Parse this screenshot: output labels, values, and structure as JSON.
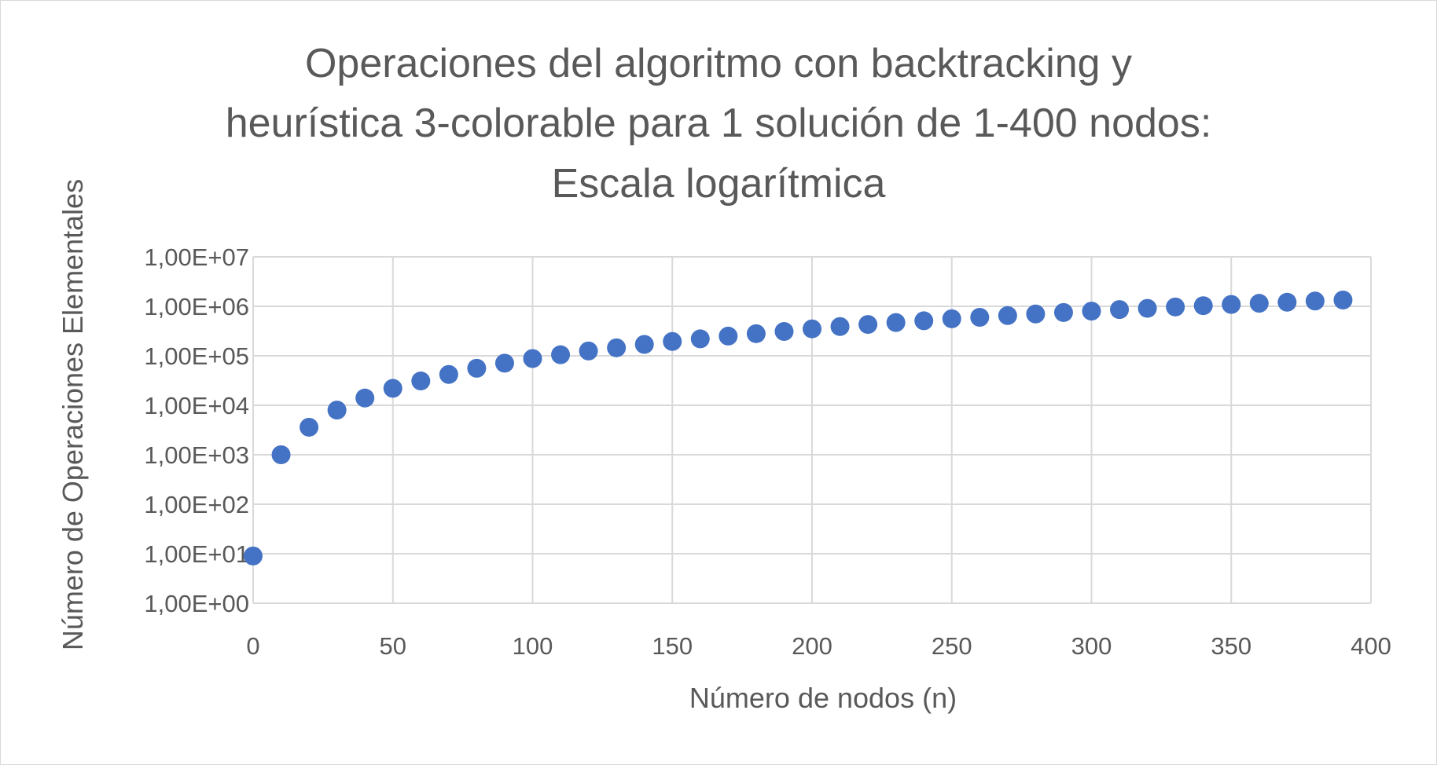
{
  "chart_data": {
    "type": "scatter",
    "title_lines": [
      "Operaciones del algoritmo con backtracking y",
      "heurística 3-colorable para 1 solución de 1-400 nodos:",
      "Escala logarítmica"
    ],
    "xlabel": "Número de nodos (n)",
    "ylabel": "Número de Operaciones Elementales",
    "xlim": [
      0,
      400
    ],
    "ylim": [
      1,
      10000000
    ],
    "yscale": "log",
    "grid": true,
    "legend": "none",
    "colors": {
      "marker": "#4472C4",
      "grid": "#d9d9d9",
      "text": "#595959"
    },
    "x_ticks": [
      "0",
      "50",
      "100",
      "150",
      "200",
      "250",
      "300",
      "350",
      "400"
    ],
    "x_tick_values": [
      0,
      50,
      100,
      150,
      200,
      250,
      300,
      350,
      400
    ],
    "y_ticks": [
      "1,00E+00",
      "1,00E+01",
      "1,00E+02",
      "1,00E+03",
      "1,00E+04",
      "1,00E+05",
      "1,00E+06",
      "1,00E+07"
    ],
    "y_tick_values": [
      1,
      10,
      100,
      1000,
      10000,
      100000,
      1000000,
      10000000
    ],
    "series": [
      {
        "x": [
          0,
          10,
          20,
          30,
          40,
          50,
          60,
          70,
          80,
          90,
          100,
          110,
          120,
          130,
          140,
          150,
          160,
          170,
          180,
          190,
          200,
          210,
          220,
          230,
          240,
          250,
          260,
          270,
          280,
          290,
          300,
          310,
          320,
          330,
          340,
          350,
          360,
          370,
          380,
          390
        ],
        "y": [
          9,
          1000,
          3600,
          8000,
          14000,
          22000,
          31000,
          42000,
          56000,
          71000,
          88000,
          105000,
          125000,
          145000,
          170000,
          195000,
          220000,
          250000,
          280000,
          310000,
          350000,
          390000,
          430000,
          470000,
          510000,
          560000,
          600000,
          650000,
          700000,
          750000,
          800000,
          860000,
          910000,
          970000,
          1030000,
          1090000,
          1150000,
          1210000,
          1280000,
          1340000
        ]
      }
    ]
  }
}
